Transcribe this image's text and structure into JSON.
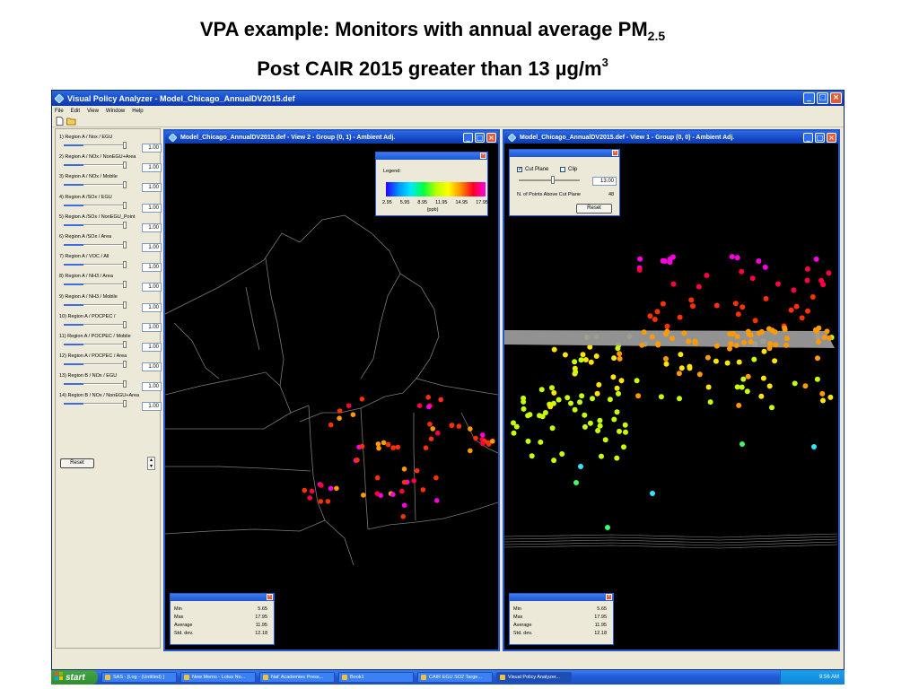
{
  "slide": {
    "title_line1_main": "VPA example:  Monitors with annual average PM",
    "title_line1_sub": "2.5",
    "title_line2_main": "Post CAIR 2015 greater than 13 µg/m",
    "title_line2_sup": "3"
  },
  "app": {
    "title": "Visual Policy Analyzer - Model_Chicago_AnnualDV2015.def",
    "menu": [
      "File",
      "Edit",
      "View",
      "Window",
      "Help"
    ]
  },
  "controls": {
    "params": [
      {
        "label": "1) Region A / Nox / EGU",
        "value": "1.00"
      },
      {
        "label": "2) Region A / NOx / NonEGU+Area",
        "value": "1.00"
      },
      {
        "label": "3) Region A / NOx / Mobile",
        "value": "1.00"
      },
      {
        "label": "4) Region A /SOx / EGU",
        "value": "1.00"
      },
      {
        "label": "5) Region A /SOx / NonEGU_Point",
        "value": "1.00"
      },
      {
        "label": "6) Region A /SOx / Area",
        "value": "1.00"
      },
      {
        "label": "7) Region A / VOC / All",
        "value": "1.00"
      },
      {
        "label": "8) Region A / NH3 / Area",
        "value": "1.00"
      },
      {
        "label": "9) Region A / NH3 / Mobile",
        "value": "1.00"
      },
      {
        "label": "10) Region A / POCPEC /",
        "value": "1.00"
      },
      {
        "label": "11) Region A / POCPEC / Mobile",
        "value": "1.00"
      },
      {
        "label": "12) Region A / POCPEC / Area",
        "value": "1.00"
      },
      {
        "label": "13) Region B / NOx / EGU",
        "value": "1.00"
      },
      {
        "label": "14) Region B / NOx / NonEGU+Area",
        "value": "1.00"
      }
    ],
    "reset_label": "Reset"
  },
  "view2": {
    "title": "Model_Chicago_AnnualDV2015.def - View 2 - Group (0, 1) - Ambient Adj.",
    "legend": {
      "title": "Legend:",
      "ticks": [
        "2.95",
        "5.95",
        "8.95",
        "11.95",
        "14.95",
        "17.95"
      ],
      "unit": "(ppb)"
    },
    "stats": {
      "rows": [
        {
          "label": "Min",
          "value": "5.65"
        },
        {
          "label": "Max",
          "value": "17.95"
        },
        {
          "label": "Average",
          "value": "11.95"
        },
        {
          "label": "Std. dev.",
          "value": "12.18"
        }
      ]
    }
  },
  "view1": {
    "title": "Model_Chicago_AnnualDV2015.def - View 1 - Group (0, 0) - Ambient Adj.",
    "cut": {
      "cut_plane_label": "Cut Plane",
      "cut_plane_checked": true,
      "clip_label": "Clip",
      "clip_checked": false,
      "value": "13.00",
      "points_label": "N. of Points Above Cut Plane",
      "points_count": "48",
      "reset_label": "Reset"
    },
    "stats": {
      "rows": [
        {
          "label": "Min",
          "value": "5.65"
        },
        {
          "label": "Max",
          "value": "17.95"
        },
        {
          "label": "Average",
          "value": "11.95"
        },
        {
          "label": "Std. dev.",
          "value": "12.18"
        }
      ]
    }
  },
  "taskbar": {
    "start_label": "start",
    "items": [
      {
        "label": "SAS - [Log - (Untitled) ]"
      },
      {
        "label": "New Memo - Lotus No..."
      },
      {
        "label": "Nat' Academies Press..."
      },
      {
        "label": "Book1"
      },
      {
        "label": "CAIR EGU SO2 Targe..."
      },
      {
        "label": "Visual Policy Analyzer..."
      }
    ],
    "clock": "9:56 AM"
  },
  "colors": {
    "window_blue": "#245edb",
    "map_background": "#000000",
    "cut_plane": "#9a9a9a"
  },
  "icons": [
    "app-icon",
    "minimize-icon",
    "maximize-icon",
    "close-icon",
    "new-file-icon",
    "open-folder-icon",
    "windows-flag-icon"
  ]
}
